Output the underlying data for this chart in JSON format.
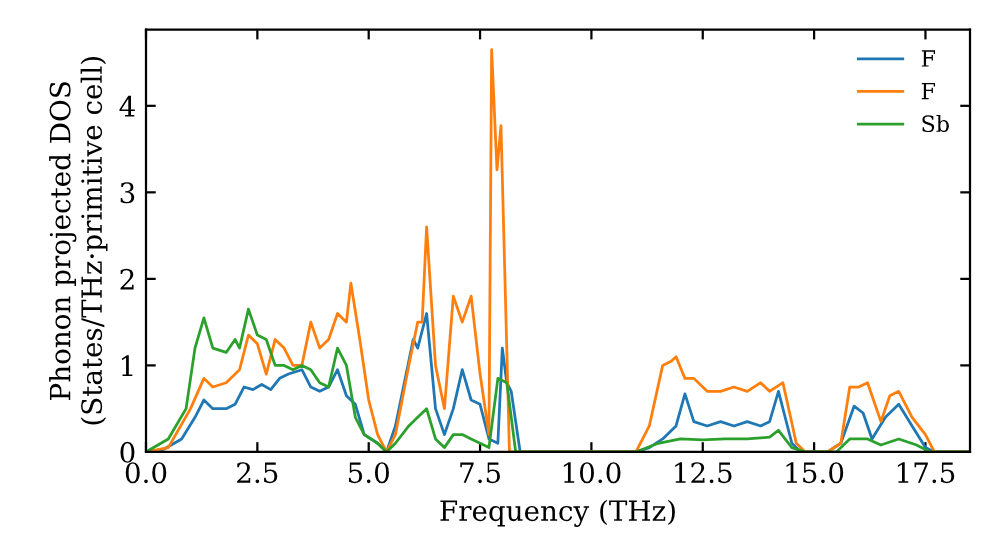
{
  "chart_data": {
    "type": "line",
    "xlabel": "Frequency (THz)",
    "ylabel": "Phonon projected DOS\n(States/THz·primitive cell)",
    "xlim": [
      0,
      18.5
    ],
    "ylim": [
      0,
      4.88
    ],
    "xticks": [
      {
        "value": 0,
        "label": "0.0"
      },
      2.5,
      {
        "value": 5,
        "label": "5.0"
      },
      7.5,
      {
        "value": 10,
        "label": "10.0"
      },
      12.5,
      {
        "value": 15,
        "label": "15.0"
      },
      17.5
    ],
    "yticks": [
      0,
      1,
      2,
      3,
      4
    ],
    "grid": false,
    "legend": "top right",
    "marker": "none",
    "line_style": "solid",
    "series": [
      {
        "name": "F",
        "color": "#1f77b4",
        "x": [
          0,
          0.4,
          0.8,
          1.1,
          1.3,
          1.5,
          1.8,
          2.0,
          2.2,
          2.4,
          2.6,
          2.8,
          3.0,
          3.2,
          3.5,
          3.7,
          3.9,
          4.1,
          4.3,
          4.5,
          4.7,
          4.9,
          5.2,
          5.4,
          5.6,
          5.8,
          6.0,
          6.1,
          6.3,
          6.5,
          6.7,
          6.9,
          7.1,
          7.3,
          7.5,
          7.7,
          7.9,
          8.0,
          8.1,
          8.2,
          8.4,
          11.0,
          11.3,
          11.6,
          11.9,
          12.1,
          12.3,
          12.6,
          12.9,
          13.2,
          13.5,
          13.8,
          14.0,
          14.2,
          14.5,
          14.7,
          15.3,
          15.6,
          15.9,
          16.1,
          16.3,
          16.6,
          16.9,
          17.2,
          17.5,
          17.7,
          18.5
        ],
        "values": [
          0,
          0.03,
          0.15,
          0.4,
          0.6,
          0.5,
          0.5,
          0.55,
          0.75,
          0.72,
          0.78,
          0.72,
          0.85,
          0.9,
          0.95,
          0.75,
          0.7,
          0.75,
          0.95,
          0.65,
          0.55,
          0.2,
          0.1,
          0,
          0.3,
          0.8,
          1.3,
          1.2,
          1.6,
          0.5,
          0.2,
          0.5,
          0.95,
          0.6,
          0.55,
          0.15,
          0.1,
          1.2,
          0.8,
          0.7,
          0,
          0,
          0.05,
          0.15,
          0.3,
          0.67,
          0.35,
          0.3,
          0.35,
          0.3,
          0.35,
          0.3,
          0.35,
          0.7,
          0.1,
          0,
          0,
          0.1,
          0.53,
          0.45,
          0.15,
          0.4,
          0.55,
          0.3,
          0.05,
          0,
          0
        ]
      },
      {
        "name": "F",
        "color": "#ff7f0e",
        "x": [
          0,
          0.5,
          1.0,
          1.3,
          1.5,
          1.8,
          2.1,
          2.3,
          2.5,
          2.7,
          2.9,
          3.1,
          3.3,
          3.5,
          3.7,
          3.9,
          4.1,
          4.3,
          4.5,
          4.6,
          4.8,
          5.0,
          5.2,
          5.4,
          5.6,
          5.9,
          6.1,
          6.2,
          6.3,
          6.5,
          6.7,
          6.9,
          7.1,
          7.3,
          7.5,
          7.7,
          7.76,
          7.88,
          7.97,
          8.16,
          11.0,
          11.3,
          11.6,
          11.8,
          11.9,
          12.1,
          12.3,
          12.6,
          12.9,
          13.2,
          13.5,
          13.8,
          14.0,
          14.3,
          14.6,
          14.8,
          15.3,
          15.6,
          15.8,
          16.0,
          16.2,
          16.5,
          16.7,
          16.9,
          17.2,
          17.5,
          17.7,
          18.5
        ],
        "values": [
          0,
          0.05,
          0.5,
          0.85,
          0.75,
          0.8,
          0.95,
          1.35,
          1.25,
          0.9,
          1.3,
          1.2,
          1.0,
          1.0,
          1.5,
          1.2,
          1.3,
          1.6,
          1.5,
          1.95,
          1.3,
          0.6,
          0.2,
          0,
          0.2,
          1.0,
          1.5,
          1.5,
          2.6,
          1.0,
          0.5,
          1.8,
          1.5,
          1.8,
          0.9,
          0.2,
          4.65,
          3.26,
          3.77,
          0,
          0,
          0.3,
          1.0,
          1.05,
          1.1,
          0.85,
          0.85,
          0.7,
          0.7,
          0.75,
          0.7,
          0.8,
          0.7,
          0.8,
          0.1,
          0,
          0,
          0.1,
          0.75,
          0.75,
          0.8,
          0.35,
          0.65,
          0.7,
          0.4,
          0.2,
          0,
          0
        ]
      },
      {
        "name": "Sb",
        "color": "#2ca02c",
        "x": [
          0,
          0.5,
          0.9,
          1.1,
          1.3,
          1.5,
          1.8,
          2.0,
          2.1,
          2.3,
          2.5,
          2.7,
          2.9,
          3.1,
          3.3,
          3.5,
          3.7,
          3.9,
          4.1,
          4.3,
          4.5,
          4.7,
          4.9,
          5.2,
          5.4,
          5.6,
          5.9,
          6.1,
          6.3,
          6.5,
          6.7,
          6.9,
          7.1,
          7.3,
          7.5,
          7.7,
          7.9,
          8.1,
          8.3,
          11.0,
          11.5,
          12.0,
          12.5,
          13.0,
          13.5,
          14.0,
          14.2,
          14.5,
          14.8,
          15.5,
          15.8,
          16.2,
          16.5,
          16.9,
          17.3,
          17.6,
          18.5
        ],
        "values": [
          0,
          0.15,
          0.5,
          1.2,
          1.55,
          1.2,
          1.15,
          1.3,
          1.2,
          1.65,
          1.35,
          1.3,
          1.0,
          1.0,
          0.95,
          1.0,
          0.95,
          0.8,
          0.75,
          1.2,
          1.0,
          0.4,
          0.2,
          0.1,
          0,
          0.1,
          0.3,
          0.4,
          0.5,
          0.15,
          0.05,
          0.2,
          0.2,
          0.15,
          0.1,
          0.05,
          0.85,
          0.8,
          0,
          0,
          0.1,
          0.15,
          0.14,
          0.15,
          0.15,
          0.17,
          0.25,
          0.05,
          0,
          0,
          0.15,
          0.15,
          0.08,
          0.15,
          0.08,
          0,
          0
        ]
      }
    ]
  }
}
